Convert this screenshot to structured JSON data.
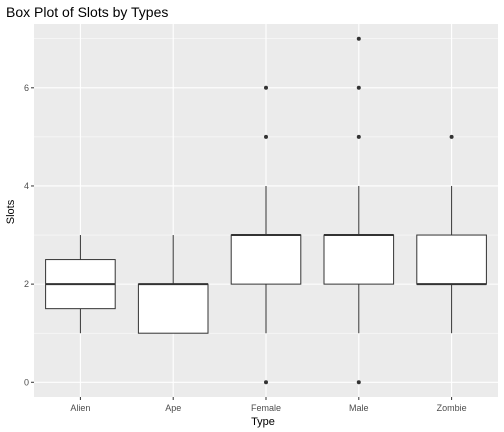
{
  "chart_data": {
    "type": "boxplot",
    "title": "Box Plot of Slots by Types",
    "xlabel": "Type",
    "ylabel": "Slots",
    "ylim": [
      -0.3,
      7.3
    ],
    "yticks": [
      0,
      2,
      4,
      6
    ],
    "grid": true,
    "categories": [
      "Alien",
      "Ape",
      "Female",
      "Male",
      "Zombie"
    ],
    "boxes": [
      {
        "category": "Alien",
        "whisker_low": 1,
        "q1": 1.5,
        "median": 2,
        "q3": 2.5,
        "whisker_high": 3,
        "outliers": []
      },
      {
        "category": "Ape",
        "whisker_low": 1,
        "q1": 1,
        "median": 2,
        "q3": 2,
        "whisker_high": 3,
        "outliers": []
      },
      {
        "category": "Female",
        "whisker_low": 1,
        "q1": 2,
        "median": 3,
        "q3": 3,
        "whisker_high": 4,
        "outliers": [
          0,
          5,
          6
        ]
      },
      {
        "category": "Male",
        "whisker_low": 1,
        "q1": 2,
        "median": 3,
        "q3": 3,
        "whisker_high": 4,
        "outliers": [
          0,
          5,
          6,
          7
        ]
      },
      {
        "category": "Zombie",
        "whisker_low": 1,
        "q1": 2,
        "median": 2,
        "q3": 3,
        "whisker_high": 4,
        "outliers": [
          5
        ]
      }
    ],
    "colors": {
      "panel_background": "#ebebeb",
      "grid_major": "#ffffff",
      "box_fill": "#ffffff",
      "box_stroke": "#333333",
      "outlier": "#333333"
    }
  }
}
